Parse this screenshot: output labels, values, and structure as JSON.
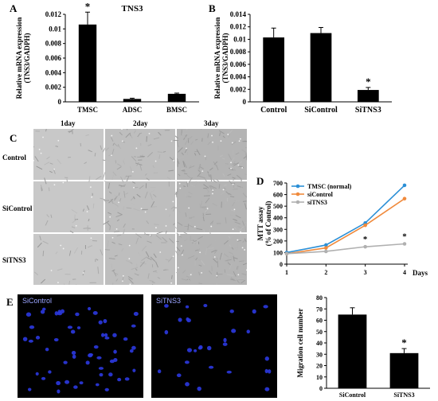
{
  "panels": {
    "A": "A",
    "B": "B",
    "C": "C",
    "D": "D",
    "E": "E"
  },
  "chart_data": [
    {
      "id": "A",
      "type": "bar",
      "title": "TNS3",
      "categories": [
        "TMSC",
        "ADSC",
        "BMSC"
      ],
      "values": [
        0.0106,
        0.0004,
        0.0011
      ],
      "errors": [
        0.0017,
        0.0001,
        0.0001
      ],
      "significance": [
        "*",
        "",
        ""
      ],
      "ylabel_lines": [
        "Relative mRNA expression",
        "(TNS3/GADPH)"
      ],
      "ylim": [
        0,
        0.012
      ],
      "yticks": [
        "0",
        "0.002",
        "0.004",
        "0.006",
        "0.008",
        "0.01",
        "0.012"
      ]
    },
    {
      "id": "B",
      "type": "bar",
      "title": "",
      "categories": [
        "Control",
        "SiControl",
        "SiTNS3"
      ],
      "values": [
        0.0103,
        0.011,
        0.0019
      ],
      "errors": [
        0.0015,
        0.0009,
        0.0004
      ],
      "significance": [
        "",
        "",
        "*"
      ],
      "ylabel_lines": [
        "Relative mRNA expression",
        "(TNS3/GADPH)"
      ],
      "ylim": [
        0,
        0.014
      ],
      "yticks": [
        "0",
        "0.002",
        "0.004",
        "0.006",
        "0.008",
        "0.01",
        "0.012",
        "0.014"
      ]
    },
    {
      "id": "D",
      "type": "line",
      "x": [
        1,
        2,
        3,
        4
      ],
      "xticks": [
        "1",
        "2",
        "3",
        "4"
      ],
      "xlabel": "Days",
      "ylabel_lines": [
        "MTT assay",
        "(% of Control)"
      ],
      "ylim": [
        0,
        700
      ],
      "yticks": [
        "0",
        "100",
        "200",
        "300",
        "400",
        "500",
        "600",
        "700"
      ],
      "series": [
        {
          "name": "TMSC (normal)",
          "values": [
            100,
            165,
            355,
            680
          ],
          "color": "#2b8fd6"
        },
        {
          "name": "siControl",
          "values": [
            90,
            140,
            335,
            565
          ],
          "color": "#f08a3c"
        },
        {
          "name": "siTNS3",
          "values": [
            90,
            110,
            150,
            175
          ],
          "color": "#b0b0b0"
        }
      ],
      "significance": [
        {
          "x": 3,
          "label": "*"
        },
        {
          "x": 4,
          "label": "*"
        }
      ],
      "legend": "top-left"
    },
    {
      "id": "E",
      "type": "bar",
      "categories": [
        "SiControl",
        "SiTNS3"
      ],
      "values": [
        65,
        31
      ],
      "errors": [
        6,
        4
      ],
      "significance": [
        "",
        "*"
      ],
      "ylabel_lines": [
        "Migration cell number"
      ],
      "ylim": [
        0,
        80
      ],
      "yticks": [
        "0",
        "10",
        "20",
        "30",
        "40",
        "50",
        "60",
        "70",
        "80"
      ]
    }
  ],
  "panel_c": {
    "days": [
      "1day",
      "2day",
      "3day"
    ],
    "rows": [
      "Control",
      "SiControl",
      "SiTNS3"
    ]
  },
  "panel_e_images": [
    "SiControl",
    "SiTNS3"
  ]
}
